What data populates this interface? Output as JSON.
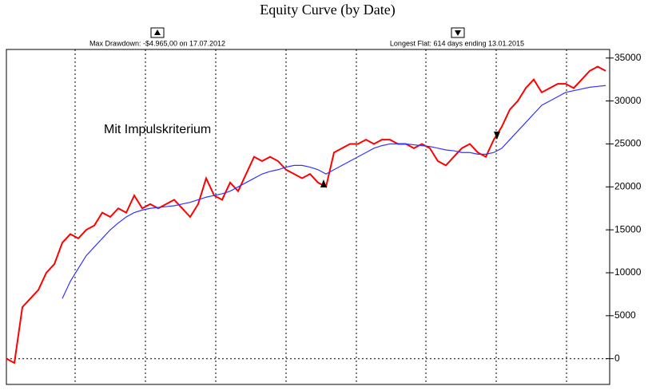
{
  "chart_data": {
    "type": "line",
    "title": "Equity Curve (by Date)",
    "annotations": [
      "Max Drawdown: -$4.965,00 on 17.07.2012",
      "Longest Flat: 614 days ending 13.01.2015",
      "Mit Impulskriterium"
    ],
    "series": [
      {
        "color": "#ff0000",
        "values": [
          0,
          -500,
          6000,
          7000,
          8000,
          10000,
          11000,
          13500,
          14500,
          14000,
          15000,
          15500,
          17000,
          16500,
          17500,
          17000,
          19000,
          17500,
          18000,
          17500,
          18000,
          18500,
          17500,
          16500,
          18000,
          21000,
          19000,
          18500,
          20500,
          19500,
          21500,
          23500,
          23000,
          23500,
          23000,
          22000,
          21500,
          21000,
          21500,
          20500,
          20000,
          24000,
          24500,
          25000,
          25000,
          25500,
          25000,
          25500,
          25500,
          25000,
          25000,
          24500,
          25000,
          24500,
          23000,
          22500,
          23500,
          24500,
          25000,
          24000,
          23500,
          25500,
          27000,
          29000,
          30000,
          31500,
          32500,
          31000,
          31500,
          32000,
          32000,
          31500,
          32500,
          33500,
          34000,
          33500
        ]
      },
      {
        "color": "#3333ff",
        "values": [
          null,
          null,
          null,
          null,
          null,
          null,
          null,
          7000,
          9000,
          10500,
          12000,
          13000,
          14000,
          15000,
          15800,
          16500,
          17000,
          17300,
          17500,
          17600,
          17700,
          17800,
          18000,
          18200,
          18500,
          18800,
          19000,
          19200,
          19500,
          20000,
          20500,
          21000,
          21500,
          21800,
          22000,
          22300,
          22500,
          22500,
          22300,
          22000,
          21500,
          22000,
          22500,
          23000,
          23500,
          24000,
          24500,
          24800,
          25000,
          25000,
          25000,
          24900,
          24800,
          24700,
          24500,
          24300,
          24200,
          24000,
          24000,
          23800,
          23800,
          24000,
          24500,
          25500,
          26500,
          27500,
          28500,
          29500,
          30000,
          30500,
          31000,
          31200,
          31400,
          31600,
          31700,
          31800
        ]
      }
    ],
    "ylim": [
      -3000,
      36000
    ],
    "yticks": [
      0,
      5000,
      10000,
      15000,
      20000,
      25000,
      30000,
      35000
    ]
  }
}
